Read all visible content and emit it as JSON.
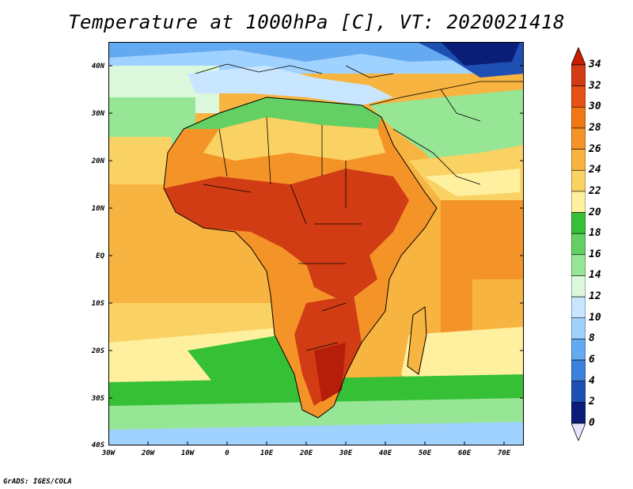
{
  "title": "Temperature at 1000hPa [C], VT: 2020021418",
  "credit": "GrADS: IGES/COLA",
  "map": {
    "lon_range": [
      -30,
      75
    ],
    "lat_range": [
      -40,
      45
    ],
    "y_ticks": [
      "40N",
      "30N",
      "20N",
      "10N",
      "EQ",
      "10S",
      "20S",
      "30S",
      "40S"
    ],
    "x_ticks": [
      "30W",
      "20W",
      "10W",
      "0",
      "10E",
      "20E",
      "30E",
      "40E",
      "50E",
      "60E",
      "70E"
    ]
  },
  "colorbar": {
    "labels": [
      "34",
      "32",
      "30",
      "28",
      "26",
      "24",
      "22",
      "20",
      "18",
      "16",
      "14",
      "12",
      "10",
      "8",
      "6",
      "4",
      "2",
      "0"
    ],
    "colors": [
      "#a00000",
      "#d23c14",
      "#e85014",
      "#f07814",
      "#f49428",
      "#f8b440",
      "#fad264",
      "#fff0a0",
      "#36c036",
      "#64d064",
      "#96e696",
      "#dcf8dc",
      "#c8e6ff",
      "#a0d2ff",
      "#64aaf0",
      "#3c82dc",
      "#1e50b4",
      "#0a1e78",
      "#05005a"
    ],
    "arrow_top": "#c81e00",
    "arrow_bottom": "#e6e6ff"
  },
  "colors": {
    "ocean_warm": "#f8b440",
    "land_hot": "#d23c14",
    "land_very_hot": "#b41e0a",
    "desert": "#f49428",
    "mediterranean": "#a0d2ff",
    "south_ocean": "#64d064"
  }
}
